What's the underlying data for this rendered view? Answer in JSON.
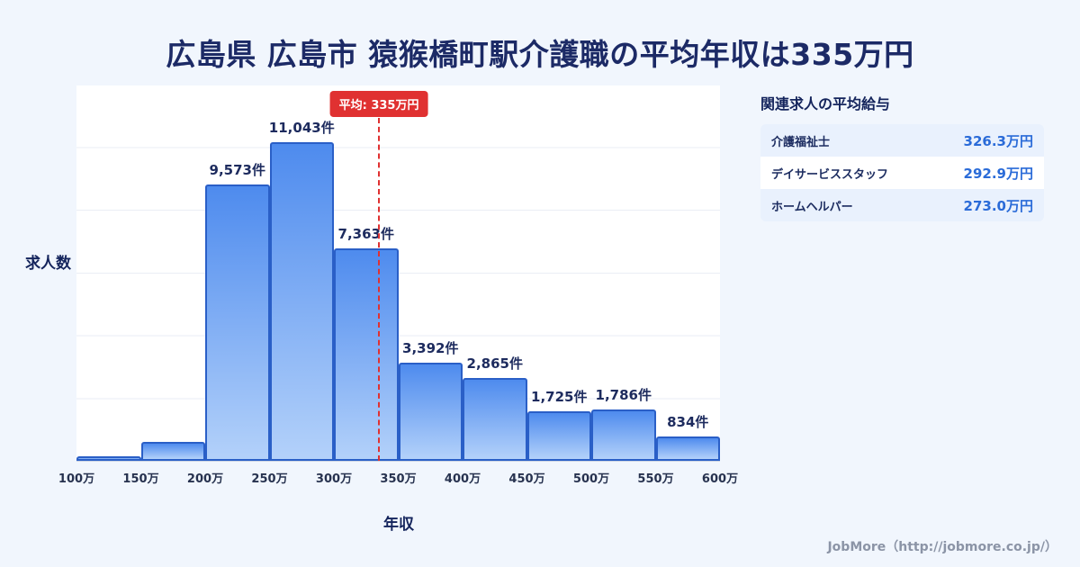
{
  "title": "広島県 広島市 猿猴橋町駅介護職の平均年収は335万円",
  "chart_data": {
    "type": "bar",
    "categories": [
      "100万",
      "150万",
      "200万",
      "250万",
      "300万",
      "350万",
      "400万",
      "450万",
      "500万",
      "550万",
      "600万"
    ],
    "values": [
      150,
      650,
      9573,
      11043,
      7363,
      3392,
      2865,
      1725,
      1786,
      834
    ],
    "bar_labels": [
      "",
      "",
      "9,573件",
      "11,043件",
      "7,363件",
      "3,392件",
      "2,865件",
      "1,725件",
      "1,786件",
      "834件"
    ],
    "xlabel": "年収",
    "ylabel": "求人数",
    "ylim": [
      0,
      13000
    ],
    "grid": "horizontal",
    "average": {
      "value": 335,
      "label": "平均: 335万円",
      "x_min": 100,
      "x_max": 600
    }
  },
  "side_panel": {
    "heading": "関連求人の平均給与",
    "rows": [
      {
        "label": "介護福祉士",
        "value": "326.3万円"
      },
      {
        "label": "デイサービススタッフ",
        "value": "292.9万円"
      },
      {
        "label": "ホームヘルパー",
        "value": "273.0万円"
      }
    ]
  },
  "footer": {
    "credit": "JobMore（http://jobmore.co.jp/）"
  },
  "colors": {
    "background": "#f1f6fd",
    "title_navy": "#1c2a66",
    "bar_top": "#4e8bee",
    "bar_bottom": "#b3d1fa",
    "bar_border": "#2a5fc7",
    "average_red": "#e03131",
    "value_blue": "#2a6bd8",
    "row_alt_blue": "#e9f1fd",
    "credit_gray": "#8b94a6"
  }
}
